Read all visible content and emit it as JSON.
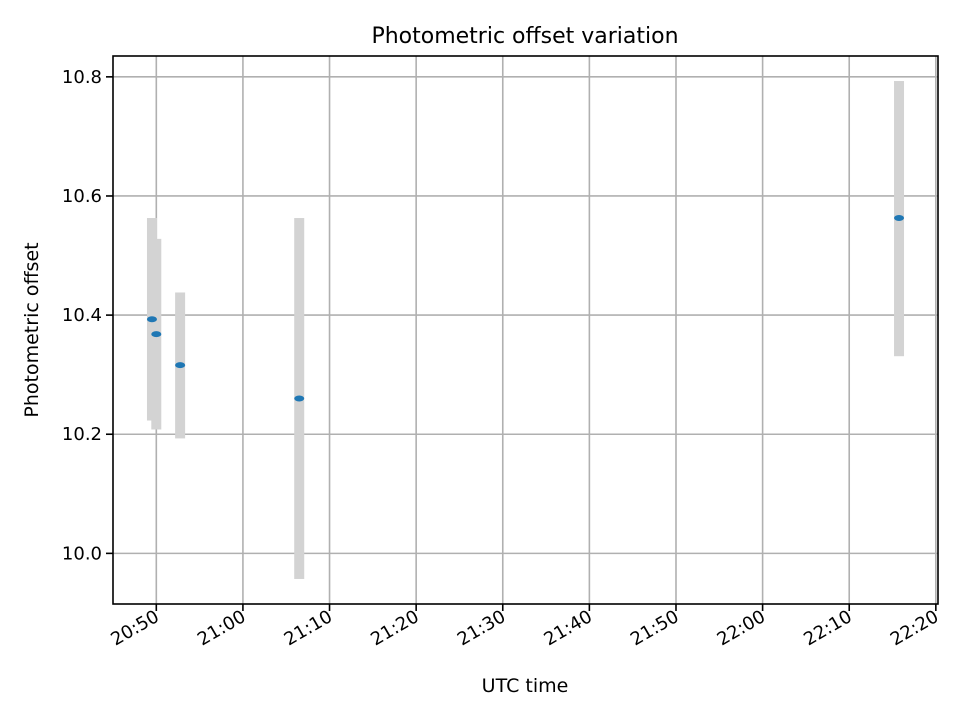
{
  "chart_data": {
    "type": "scatter",
    "title": "Photometric offset variation",
    "xlabel": "UTC time",
    "ylabel": "Photometric offset",
    "x_ticks": [
      "20:50",
      "21:00",
      "21:10",
      "21:20",
      "21:30",
      "21:40",
      "21:50",
      "22:00",
      "22:10",
      "22:20"
    ],
    "y_ticks": [
      "10.0",
      "10.2",
      "10.4",
      "10.6",
      "10.8"
    ],
    "xlim": [
      "20:45",
      "22:20:15"
    ],
    "ylim": [
      9.915,
      10.835
    ],
    "grid": true,
    "series": [
      {
        "x": [
          "20:49:30",
          "20:50:00",
          "20:52:45",
          "21:06:30",
          "22:15:45"
        ],
        "y": [
          10.393,
          10.368,
          10.316,
          10.26,
          10.563
        ],
        "y_low": [
          10.223,
          10.208,
          10.193,
          9.957,
          10.331
        ],
        "y_high": [
          10.563,
          10.528,
          10.438,
          10.563,
          10.793
        ],
        "colors": {
          "marker": "#1f77b4",
          "errorbar": "#d3d3d3"
        }
      }
    ]
  }
}
